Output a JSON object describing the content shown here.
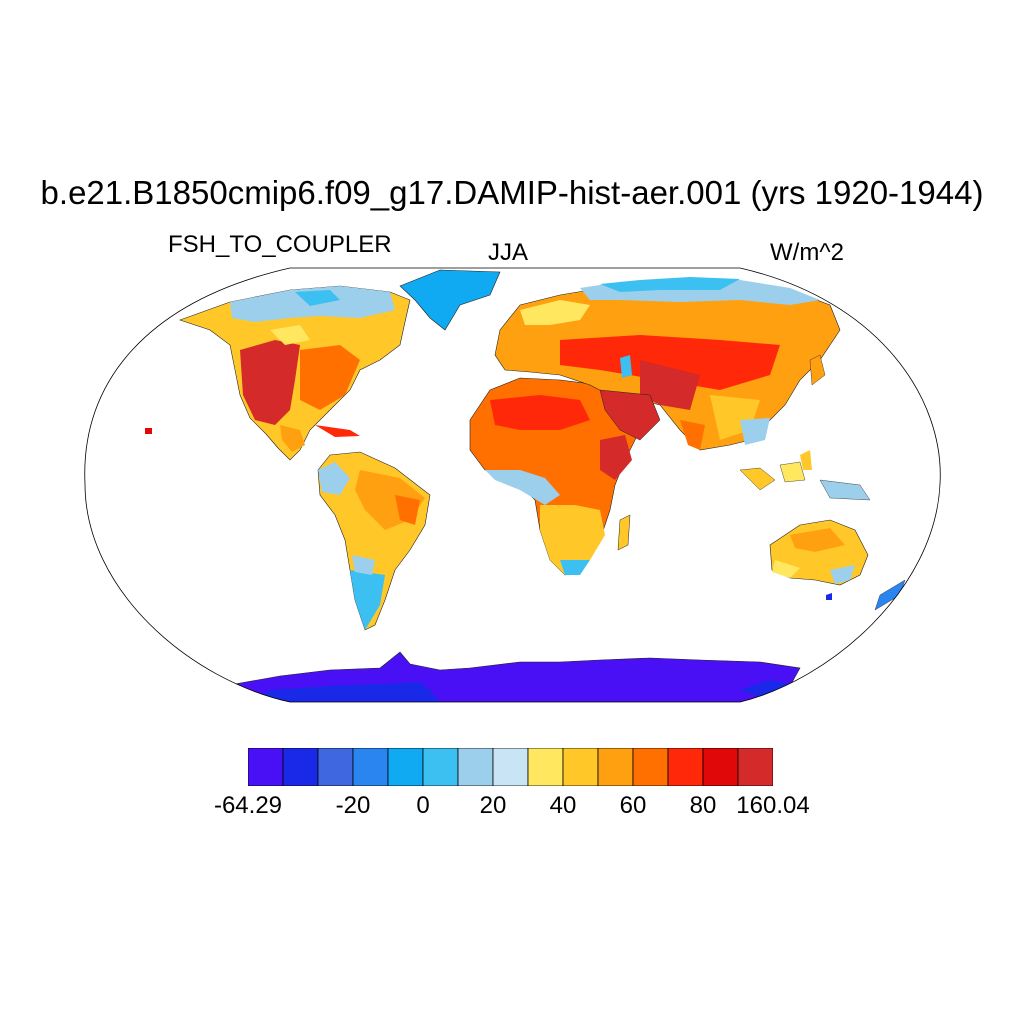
{
  "header": {
    "title": "b.e21.B1850cmip6.f09_g17.DAMIP-hist-aer.001 (yrs 1920-1944)",
    "variable": "FSH_TO_COUPLER",
    "season": "JJA",
    "units": "W/m^2"
  },
  "map": {
    "projection": "Robinson",
    "background_color": "#ffffff",
    "ocean": "unfilled"
  },
  "colorbar": {
    "colors": [
      "#4a10f5",
      "#1a28e8",
      "#3f68e0",
      "#2a85f0",
      "#10aaf2",
      "#3cc0f2",
      "#9ccfec",
      "#c8e4f5",
      "#ffe860",
      "#ffc828",
      "#ffa010",
      "#ff7000",
      "#ff2808",
      "#e00808",
      "#d42a2a"
    ],
    "tick_labels": [
      "-64.29",
      "-20",
      "0",
      "20",
      "40",
      "60",
      "80",
      "160.04"
    ],
    "tick_boundary_index": [
      0,
      3,
      5,
      7,
      9,
      11,
      13,
      15
    ]
  }
}
